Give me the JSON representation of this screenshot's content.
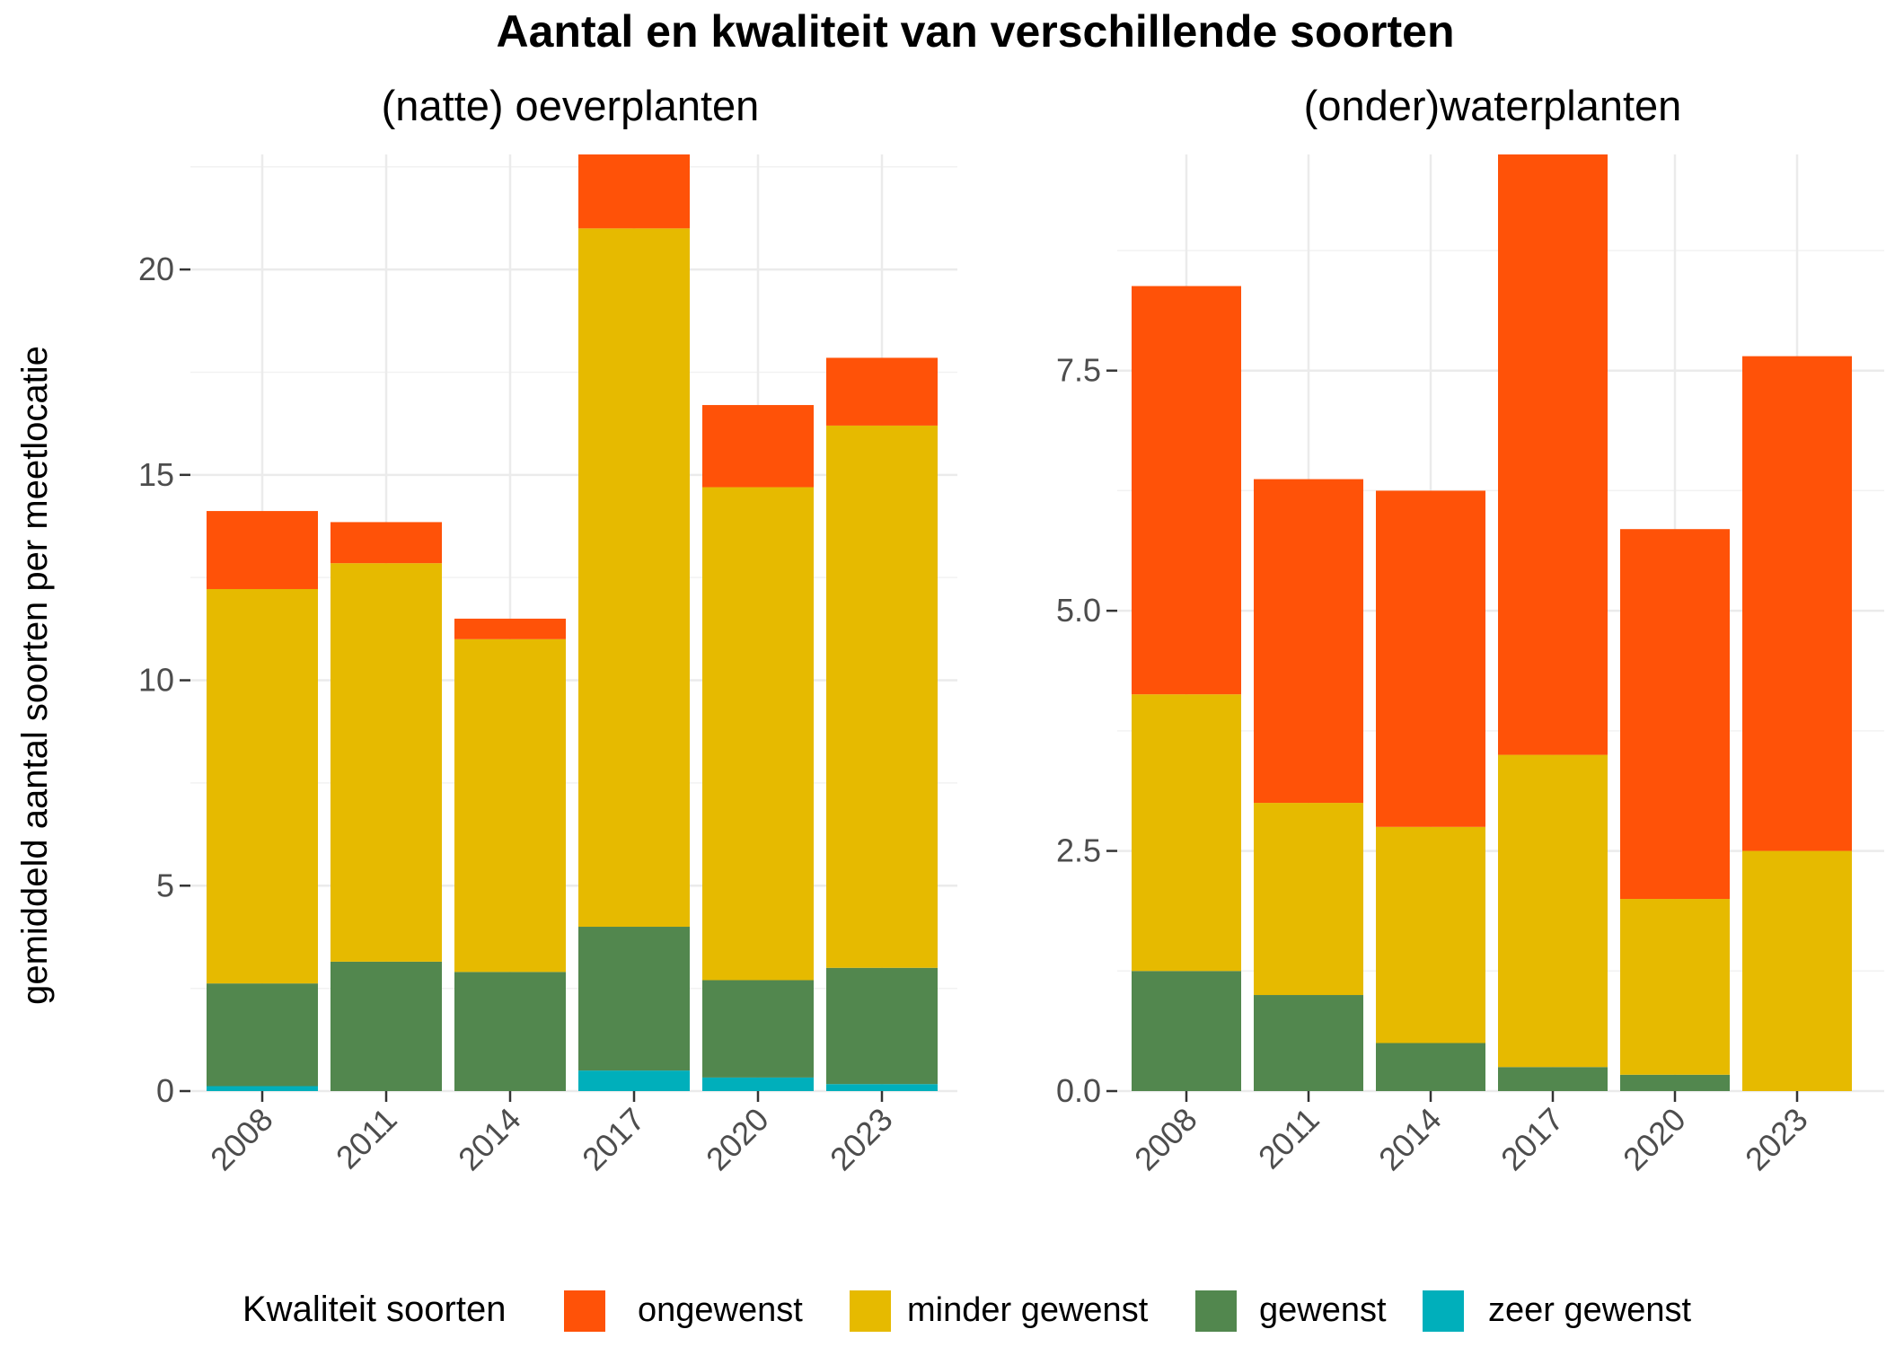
{
  "chart_data": {
    "title": "Aantal en kwaliteit van verschillende soorten",
    "ylabel": "gemiddeld aantal soorten per meetlocatie",
    "type": "bar",
    "stacked": true,
    "legend": {
      "title": "Kwaliteit soorten",
      "position": "bottom",
      "entries": [
        "ongewenst",
        "minder gewenst",
        "gewenst",
        "zeer gewenst"
      ]
    },
    "colors": {
      "ongewenst": "#FF5208",
      "minder gewenst": "#E6BA00",
      "gewenst": "#52874E",
      "zeer gewenst": "#00AFBB"
    },
    "grid": true,
    "panels": [
      {
        "title": "(natte) oeverplanten",
        "categories": [
          "2008",
          "2011",
          "2014",
          "2017",
          "2020",
          "2023"
        ],
        "ylim": [
          0,
          22.8
        ],
        "y_ticks": [
          0,
          5,
          10,
          15,
          20
        ],
        "y_tick_labels": [
          "0",
          "5",
          "10",
          "15",
          "20"
        ],
        "series": [
          {
            "name": "zeer gewenst",
            "values": [
              0.12,
              0,
              0,
              0.5,
              0.33,
              0.17
            ]
          },
          {
            "name": "gewenst",
            "values": [
              2.5,
              3.15,
              2.9,
              3.5,
              2.37,
              2.83
            ]
          },
          {
            "name": "minder gewenst",
            "values": [
              9.6,
              9.7,
              8.1,
              17.0,
              12.0,
              13.2
            ]
          },
          {
            "name": "ongewenst",
            "values": [
              1.9,
              1.0,
              0.5,
              1.8,
              2.0,
              1.65
            ]
          }
        ]
      },
      {
        "title": "(onder)waterplanten",
        "categories": [
          "2008",
          "2011",
          "2014",
          "2017",
          "2020",
          "2023"
        ],
        "ylim": [
          0,
          9.75
        ],
        "y_ticks": [
          0,
          2.5,
          5,
          7.5
        ],
        "y_tick_labels": [
          "0.0",
          "2.5",
          "5.0",
          "7.5"
        ],
        "series": [
          {
            "name": "zeer gewenst",
            "values": [
              0,
              0,
              0,
              0,
              0,
              0
            ]
          },
          {
            "name": "gewenst",
            "values": [
              1.25,
              1.0,
              0.5,
              0.25,
              0.17,
              0
            ]
          },
          {
            "name": "minder gewenst",
            "values": [
              2.88,
              2.0,
              2.25,
              3.25,
              1.83,
              2.5
            ]
          },
          {
            "name": "ongewenst",
            "values": [
              4.25,
              3.37,
              3.5,
              6.25,
              3.85,
              5.15
            ]
          }
        ]
      }
    ]
  }
}
